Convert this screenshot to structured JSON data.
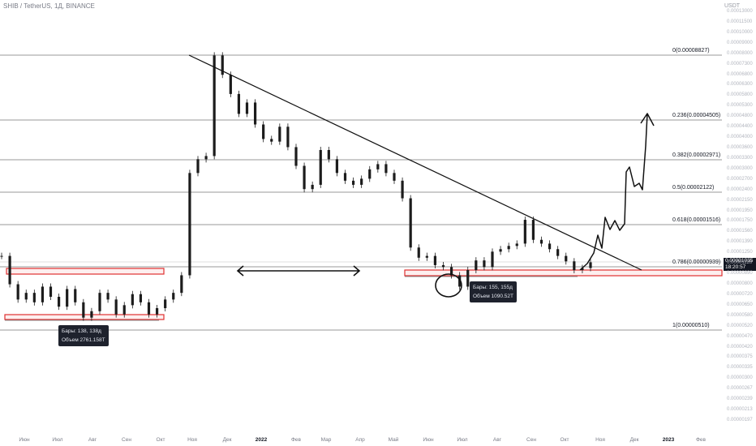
{
  "symbol_header": "SHIB / TetherUS, 1Д, BINANCE",
  "currency": "USDT",
  "colors": {
    "candle": "#1c1c1c",
    "fib_line": "#333333",
    "zone": "#e03030",
    "tooltip_bg": "#1e222d"
  },
  "current_price": {
    "value": "0.00001035",
    "countdown": "18:20:57"
  },
  "fib_levels": [
    {
      "ratio": 0,
      "label": "0(0.00008827)"
    },
    {
      "ratio": 0.236,
      "label": "0.236(0.00004505)"
    },
    {
      "ratio": 0.382,
      "label": "0.382(0.00002971)"
    },
    {
      "ratio": 0.5,
      "label": "0.5(0.00002122)"
    },
    {
      "ratio": 0.618,
      "label": "0.618(0.00001516)"
    },
    {
      "ratio": 0.786,
      "label": "0.786(0.00000939)"
    },
    {
      "ratio": 1,
      "label": "1(0.00000510)"
    }
  ],
  "tooltips": [
    {
      "line1": "Бары: 138, 138д",
      "line2": "Объем 2761.158T"
    },
    {
      "line1": "Бары: 155, 155д",
      "line2": "Объем 1090.52T"
    }
  ],
  "x_ticks": [
    "Июн",
    "Июл",
    "Авг",
    "Сен",
    "Окт",
    "Ноя",
    "Дек",
    "2022",
    "Фев",
    "Мар",
    "Апр",
    "Май",
    "Июн",
    "Июл",
    "Авг",
    "Сен",
    "Окт",
    "Ноя",
    "Дек",
    "2023",
    "Фев"
  ],
  "y_ticks": [
    "0.00013000",
    "0.00011500",
    "0.00010000",
    "0.00009000",
    "0.00008000",
    "0.00007300",
    "0.00006800",
    "0.00006300",
    "0.00005800",
    "0.00005300",
    "0.00004800",
    "0.00004400",
    "0.00004000",
    "0.00003600",
    "0.00003300",
    "0.00003000",
    "0.00002700",
    "0.00002400",
    "0.00002150",
    "0.00001950",
    "0.00001750",
    "0.00001560",
    "0.00001390",
    "0.00001250",
    "0.00001120",
    "0.00000890",
    "0.00000800",
    "0.00000720",
    "0.00000650",
    "0.00000580",
    "0.00000520",
    "0.00000470",
    "0.00000420",
    "0.00000375",
    "0.00000335",
    "0.00000300",
    "0.00000267",
    "0.00000239",
    "0.00000213",
    "0.00000197"
  ],
  "chart_data": {
    "type": "line",
    "title": "SHIB / TetherUS, 1Д, BINANCE",
    "scale": "log",
    "y_unit": "USDT",
    "series": [
      {
        "values": [
          1.1e-05,
          8.2e-06,
          7e-06,
          7.5e-06,
          6.8e-06,
          8e-06,
          7.2e-06,
          6.5e-06,
          7.8e-06,
          6.8e-06,
          5.8e-06,
          6.2e-06,
          7.5e-06,
          7e-06,
          6e-06,
          6.6e-06,
          7.4e-06,
          6.8e-06,
          6e-06,
          6.4e-06,
          7e-06,
          7.5e-06,
          9e-06,
          2.6e-05,
          3e-05,
          3.1e-05,
          8.8e-05,
          7.2e-05,
          5.9e-05,
          4.8e-05,
          5.4e-05,
          4.3e-05,
          3.7e-05,
          3.6e-05,
          4.2e-05,
          3.4e-05,
          2.8e-05,
          2.2e-05,
          2.3e-05,
          3.3e-05,
          3e-05,
          2.6e-05,
          2.4e-05,
          2.3e-05,
          2.45e-05,
          2.7e-05,
          2.85e-05,
          2.6e-05,
          2.4e-05,
          2e-05,
          1.2e-05,
          1.08e-05,
          1.1e-05,
          1e-05,
          9.8e-06,
          9e-06,
          8e-06,
          9.5e-06,
          1.05e-05,
          9.8e-06,
          1.15e-05,
          1.18e-05,
          1.22e-05,
          1.25e-05,
          1.6e-05,
          1.3e-05,
          1.25e-05,
          1.18e-05,
          1.1e-05,
          1.04e-05,
          9.5e-06,
          9.7e-06,
          1.03e-05
        ]
      }
    ],
    "fib_retracement": {
      "high": 8.827e-05,
      "low": 5.1e-06,
      "levels": [
        0,
        0.236,
        0.382,
        0.5,
        0.618,
        0.786,
        1
      ]
    },
    "annotations": [
      {
        "type": "trendline",
        "text": ""
      },
      {
        "type": "support-zone",
        "text": ""
      },
      {
        "type": "double-arrow",
        "text": ""
      },
      {
        "type": "projection-arrow",
        "text": ""
      },
      {
        "type": "circle",
        "text": ""
      }
    ]
  }
}
